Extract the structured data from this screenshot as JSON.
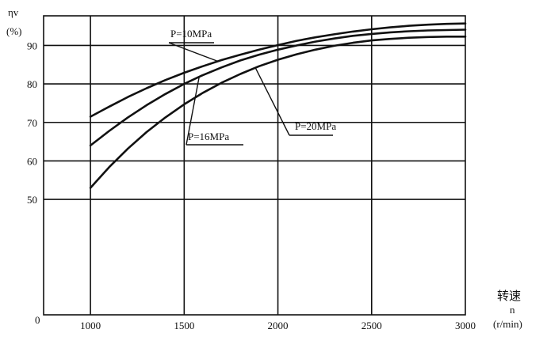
{
  "chart_data": {
    "type": "line",
    "y_title": "ηv",
    "y_unit": "(%)",
    "x_title": "转速",
    "x_symbol": "n",
    "x_unit": "(r/min)",
    "origin_label": "0",
    "xlim": [
      750,
      3000
    ],
    "ylim": [
      20,
      97.7
    ],
    "x_ticks": [
      1000,
      1500,
      2000,
      2500,
      3000
    ],
    "y_ticks": [
      50,
      60,
      70,
      80,
      90
    ],
    "grid": true,
    "series": [
      {
        "name": "P=10MPa",
        "x": [
          1000,
          1100,
          1200,
          1300,
          1400,
          1500,
          1600,
          1700,
          1800,
          1900,
          2000,
          2100,
          2200,
          2300,
          2400,
          2500,
          2600,
          2700,
          2800,
          2900,
          3000
        ],
        "y": [
          71.5,
          74.1,
          76.6,
          78.9,
          81.0,
          82.9,
          84.6,
          86.2,
          87.6,
          88.9,
          90.1,
          91.2,
          92.1,
          92.9,
          93.6,
          94.2,
          94.7,
          95.1,
          95.4,
          95.6,
          95.7
        ]
      },
      {
        "name": "P=16MPa",
        "x": [
          1000,
          1100,
          1200,
          1300,
          1400,
          1500,
          1600,
          1700,
          1800,
          1900,
          2000,
          2100,
          2200,
          2300,
          2400,
          2500,
          2600,
          2700,
          2800,
          2900,
          3000
        ],
        "y": [
          64.0,
          67.8,
          71.3,
          74.5,
          77.4,
          80.0,
          82.3,
          84.3,
          86.1,
          87.6,
          88.9,
          90.0,
          91.0,
          91.8,
          92.5,
          93.0,
          93.4,
          93.7,
          93.9,
          94.0,
          94.1
        ]
      },
      {
        "name": "P=20MPa",
        "x": [
          1000,
          1100,
          1200,
          1300,
          1400,
          1500,
          1600,
          1700,
          1800,
          1900,
          2000,
          2100,
          2200,
          2300,
          2400,
          2500,
          2600,
          2700,
          2800,
          2900,
          3000
        ],
        "y": [
          53.0,
          58.4,
          63.2,
          67.5,
          71.3,
          74.7,
          77.7,
          80.3,
          82.6,
          84.6,
          86.3,
          87.7,
          88.9,
          89.9,
          90.7,
          91.3,
          91.7,
          92.0,
          92.2,
          92.3,
          92.3
        ]
      }
    ]
  }
}
